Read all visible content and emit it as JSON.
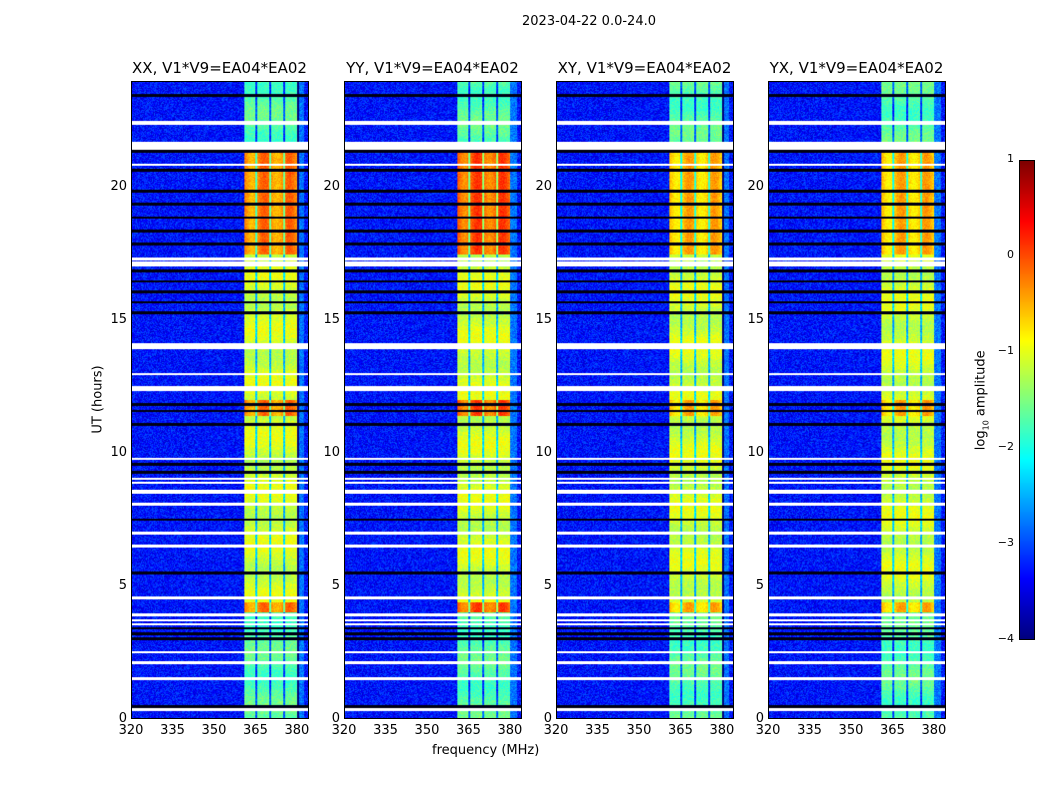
{
  "chart_data": {
    "type": "heatmap",
    "title": "2023-04-22 0.0-24.0",
    "xlabel": "frequency (MHz)",
    "ylabel": "UT (hours)",
    "xlim": [
      320,
      384
    ],
    "ylim": [
      0,
      24
    ],
    "xticks": [
      320,
      335,
      350,
      365,
      380
    ],
    "yticks": [
      0,
      5,
      10,
      15,
      20
    ],
    "colormap": "jet",
    "colorbar": {
      "label": "log10 amplitude",
      "label_base": "log",
      "label_sub": "10",
      "label_rest": " amplitude",
      "range": [
        -4,
        1
      ],
      "ticks": [
        1,
        0,
        -1,
        -2,
        -3,
        -4
      ]
    },
    "panels": [
      {
        "title": "XX, V1*V9=EA04*EA02",
        "peak": 0.0
      },
      {
        "title": "YY, V1*V9=EA04*EA02",
        "peak": 0.2
      },
      {
        "title": "XY, V1*V9=EA04*EA02",
        "peak": -0.3
      },
      {
        "title": "YX, V1*V9=EA04*EA02",
        "peak": -0.3
      }
    ],
    "background_level": -3.3,
    "band_mhz": [
      360.5,
      380
    ],
    "band_level": -1.3,
    "channel_gaps_mhz": [
      365,
      370,
      375
    ],
    "hot_hours": [
      [
        11.4,
        12.0
      ],
      [
        17.5,
        21.5
      ],
      [
        4.0,
        4.4
      ]
    ],
    "flagged_hours_white": [
      22.5,
      22.45,
      21.7,
      21.6,
      21.5,
      20.9,
      17.35,
      17.2,
      17.1,
      14.1,
      14.0,
      13.0,
      12.5,
      12.4,
      9.8,
      9.05,
      8.9,
      8.55,
      8.6,
      8.1,
      7.0,
      6.5,
      4.55,
      3.9,
      3.7,
      3.55,
      2.5,
      2.1,
      1.5,
      0.35
    ],
    "flagged_hours_dark": [
      23.5,
      21.4,
      20.7,
      19.9,
      19.4,
      18.9,
      18.4,
      17.9,
      16.9,
      16.5,
      16.1,
      15.7,
      15.3,
      11.85,
      11.6,
      11.1,
      9.6,
      9.3,
      7.5,
      5.5,
      3.4,
      3.2,
      3.0,
      0.45
    ]
  }
}
